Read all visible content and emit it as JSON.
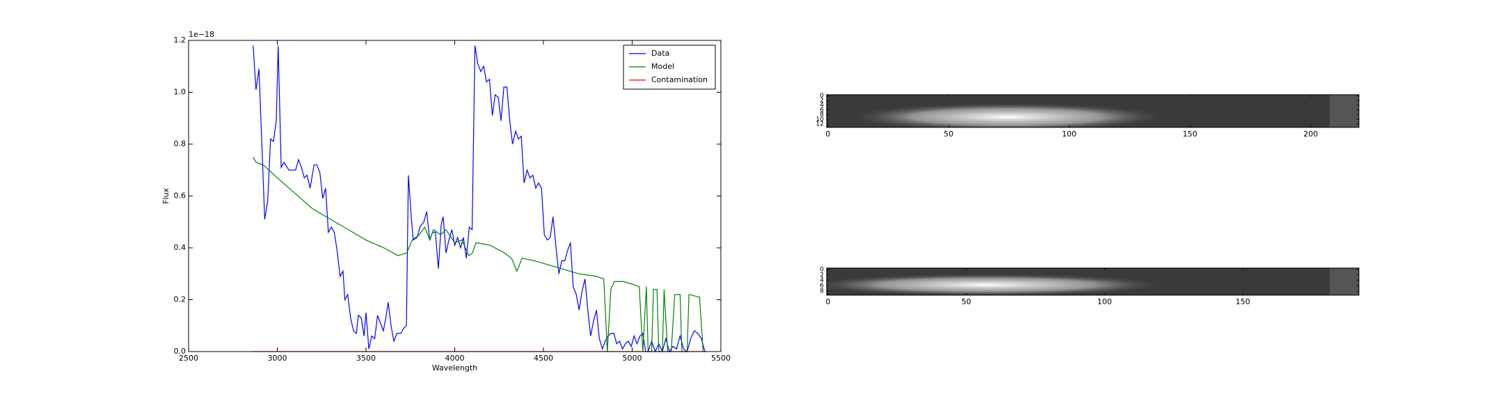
{
  "chart_data": [
    {
      "type": "line",
      "xlabel": "Wavelength",
      "ylabel": "Flux",
      "y_offset_label": "1e−18",
      "xlim": [
        2500,
        5500
      ],
      "ylim": [
        0,
        1.2
      ],
      "xticks": [
        2500,
        3000,
        3500,
        4000,
        4500,
        5000,
        5500
      ],
      "yticks": [
        {
          "value": 0,
          "label": "0.0"
        },
        0.2,
        0.4,
        0.6,
        0.8,
        {
          "value": 1,
          "label": "1.0"
        },
        1.2
      ],
      "legend": "upper right",
      "series": [
        {
          "name": "Data",
          "color": "#0000ff",
          "x": [
            2864,
            2880,
            2897,
            2929,
            2946,
            2962,
            2978,
            2994,
            3005,
            3022,
            3038,
            3065,
            3103,
            3120,
            3136,
            3152,
            3168,
            3185,
            3207,
            3223,
            3240,
            3256,
            3272,
            3288,
            3305,
            3321,
            3337,
            3354,
            3370,
            3381,
            3397,
            3413,
            3430,
            3446,
            3457,
            3473,
            3489,
            3500,
            3516,
            3532,
            3549,
            3565,
            3581,
            3598,
            3614,
            3625,
            3641,
            3657,
            3674,
            3696,
            3712,
            3728,
            3739,
            3755,
            3766,
            3788,
            3804,
            3826,
            3842,
            3859,
            3875,
            3891,
            3908,
            3924,
            3935,
            3951,
            3967,
            3984,
            4000,
            4016,
            4033,
            4049,
            4065,
            4082,
            4098,
            4114,
            4130,
            4147,
            4163,
            4179,
            4196,
            4212,
            4228,
            4245,
            4261,
            4277,
            4294,
            4310,
            4326,
            4343,
            4359,
            4375,
            4391,
            4408,
            4424,
            4440,
            4457,
            4473,
            4489,
            4505,
            4522,
            4538,
            4554,
            4571,
            4587,
            4603,
            4620,
            4636,
            4652,
            4668,
            4685,
            4701,
            4717,
            4734,
            4750,
            4766,
            4783,
            4799,
            4815,
            4832,
            4848,
            4864,
            4880,
            4897,
            4913,
            4929,
            4946,
            4962,
            4978,
            4995,
            5011,
            5027,
            5044,
            5060,
            5076,
            5090,
            5110,
            5130,
            5150,
            5170,
            5190,
            5210,
            5230,
            5250,
            5270,
            5290,
            5310,
            5330,
            5350,
            5370,
            5390,
            5410
          ],
          "values": [
            1.18,
            1.01,
            1.09,
            0.51,
            0.58,
            0.82,
            0.81,
            0.89,
            1.18,
            0.71,
            0.73,
            0.7,
            0.7,
            0.74,
            0.71,
            0.67,
            0.68,
            0.63,
            0.72,
            0.72,
            0.69,
            0.59,
            0.63,
            0.46,
            0.48,
            0.46,
            0.39,
            0.29,
            0.31,
            0.2,
            0.22,
            0.13,
            0.08,
            0.07,
            0.14,
            0.13,
            0.06,
            0.15,
            0.01,
            0.06,
            0.05,
            0.14,
            0.11,
            0.08,
            0.14,
            0.19,
            0.1,
            0.04,
            0.07,
            0.07,
            0.09,
            0.1,
            0.68,
            0.52,
            0.43,
            0.44,
            0.48,
            0.5,
            0.54,
            0.43,
            0.46,
            0.46,
            0.32,
            0.49,
            0.52,
            0.38,
            0.43,
            0.47,
            0.41,
            0.44,
            0.4,
            0.44,
            0.36,
            0.48,
            0.47,
            1.18,
            1.11,
            1.08,
            1.1,
            1.04,
            1.05,
            0.91,
            0.99,
            0.98,
            0.89,
            1.02,
            1.02,
            0.89,
            0.8,
            0.85,
            0.82,
            0.83,
            0.65,
            0.7,
            0.67,
            0.68,
            0.63,
            0.65,
            0.63,
            0.45,
            0.43,
            0.44,
            0.52,
            0.4,
            0.3,
            0.35,
            0.35,
            0.39,
            0.42,
            0.25,
            0.22,
            0.16,
            0.23,
            0.28,
            0.16,
            0.06,
            0.12,
            0.16,
            0.05,
            0.01,
            0.04,
            0.06,
            0.07,
            0.07,
            0.03,
            0.04,
            0.01,
            0.03,
            0.04,
            0.02,
            0.06,
            0.03,
            0.06,
            0.07,
            0,
            0,
            0.04,
            0,
            0.03,
            0,
            0.05,
            0,
            0.02,
            0.01,
            0.06,
            0.01,
            0,
            0.05,
            0.08,
            0.07,
            0.05,
            0
          ]
        },
        {
          "name": "Model",
          "color": "#008000",
          "x": [
            2864,
            2880,
            2920,
            3000,
            3100,
            3200,
            3300,
            3400,
            3500,
            3600,
            3680,
            3730,
            3760,
            3800,
            3830,
            3860,
            3880,
            3920,
            3950,
            4000,
            4040,
            4080,
            4100,
            4120,
            4200,
            4280,
            4320,
            4350,
            4380,
            4450,
            4500,
            4600,
            4700,
            4800,
            4840,
            4860,
            4880,
            4900,
            4950,
            5000,
            5040,
            5060,
            5080,
            5090,
            5110,
            5120,
            5140,
            5150,
            5170,
            5180,
            5200,
            5220,
            5240,
            5270,
            5280,
            5310,
            5320,
            5380,
            5400
          ],
          "values": [
            0.75,
            0.73,
            0.72,
            0.67,
            0.61,
            0.55,
            0.51,
            0.47,
            0.43,
            0.4,
            0.37,
            0.38,
            0.43,
            0.45,
            0.48,
            0.43,
            0.47,
            0.45,
            0.47,
            0.42,
            0.43,
            0.37,
            0.38,
            0.42,
            0.41,
            0.38,
            0.36,
            0.31,
            0.36,
            0.35,
            0.34,
            0.32,
            0.3,
            0.29,
            0.28,
            0,
            0.24,
            0.27,
            0.27,
            0.26,
            0.25,
            0,
            0.25,
            0,
            0,
            0.24,
            0.24,
            0,
            0,
            0.24,
            0,
            0,
            0.22,
            0.22,
            0,
            0,
            0.22,
            0.21,
            0
          ]
        },
        {
          "name": "Contamination",
          "color": "#ff0000",
          "x": [
            2864,
            5420
          ],
          "values": [
            0,
            0
          ]
        }
      ]
    },
    {
      "type": "image",
      "xlim": [
        -0.5,
        220
      ],
      "ylim": [
        -0.5,
        13.5
      ],
      "y_inverted": true,
      "xticks": [
        0,
        50,
        100,
        150,
        200
      ],
      "yticks": [
        0,
        2,
        4,
        6,
        8,
        10,
        12
      ]
    },
    {
      "type": "image",
      "xlim": [
        -0.5,
        192
      ],
      "ylim": [
        -0.5,
        9.5
      ],
      "y_inverted": true,
      "xticks": [
        0,
        50,
        100,
        150
      ],
      "yticks": [
        0,
        2,
        4,
        6,
        8
      ]
    }
  ]
}
